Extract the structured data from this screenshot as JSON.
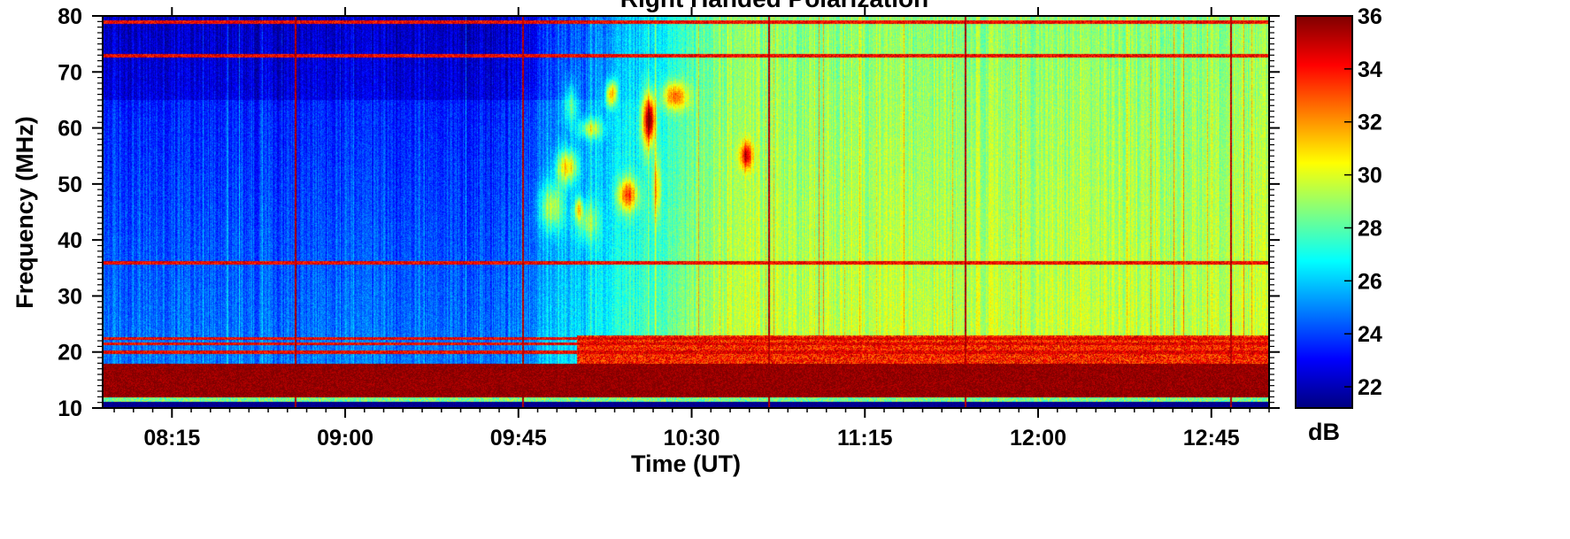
{
  "chart_data": {
    "type": "heatmap",
    "title": "Right Handed Polarization",
    "xlabel": "Time (UT)",
    "ylabel": "Frequency (MHz)",
    "x_ticks": [
      "08:15",
      "09:00",
      "09:45",
      "10:30",
      "11:15",
      "12:00",
      "12:45"
    ],
    "x_tick_minutes": [
      495,
      540,
      585,
      630,
      675,
      720,
      765
    ],
    "xlim_minutes": [
      477,
      780
    ],
    "y_ticks": [
      10,
      20,
      30,
      40,
      50,
      60,
      70,
      80
    ],
    "ylim": [
      10,
      80
    ],
    "colorbar": {
      "label": "dB",
      "ticks": [
        22,
        24,
        26,
        28,
        30,
        32,
        34,
        36
      ],
      "range": [
        21.2,
        36
      ],
      "colormap": "jet",
      "colors": [
        "#00007f",
        "#0000ff",
        "#0080ff",
        "#00ffff",
        "#80ff80",
        "#ffff00",
        "#ff8000",
        "#ff0000",
        "#7f0000"
      ]
    },
    "features": {
      "saturated_band_mhz": [
        12,
        18
      ],
      "interference_lines_mhz": [
        13,
        15.5,
        20,
        21.5,
        22.5,
        36,
        73,
        79
      ],
      "broadband_vertical_lines_ut": [
        "08:47",
        "09:46",
        "10:50",
        "11:41",
        "12:50"
      ],
      "burst_cluster": {
        "time_range_ut": [
          "09:50",
          "10:45"
        ],
        "freq_range_mhz": [
          42,
          67
        ],
        "peak_db": 36
      },
      "background_level_db": {
        "before_09:45": 24.5,
        "after_10:20": 29.5
      }
    }
  }
}
